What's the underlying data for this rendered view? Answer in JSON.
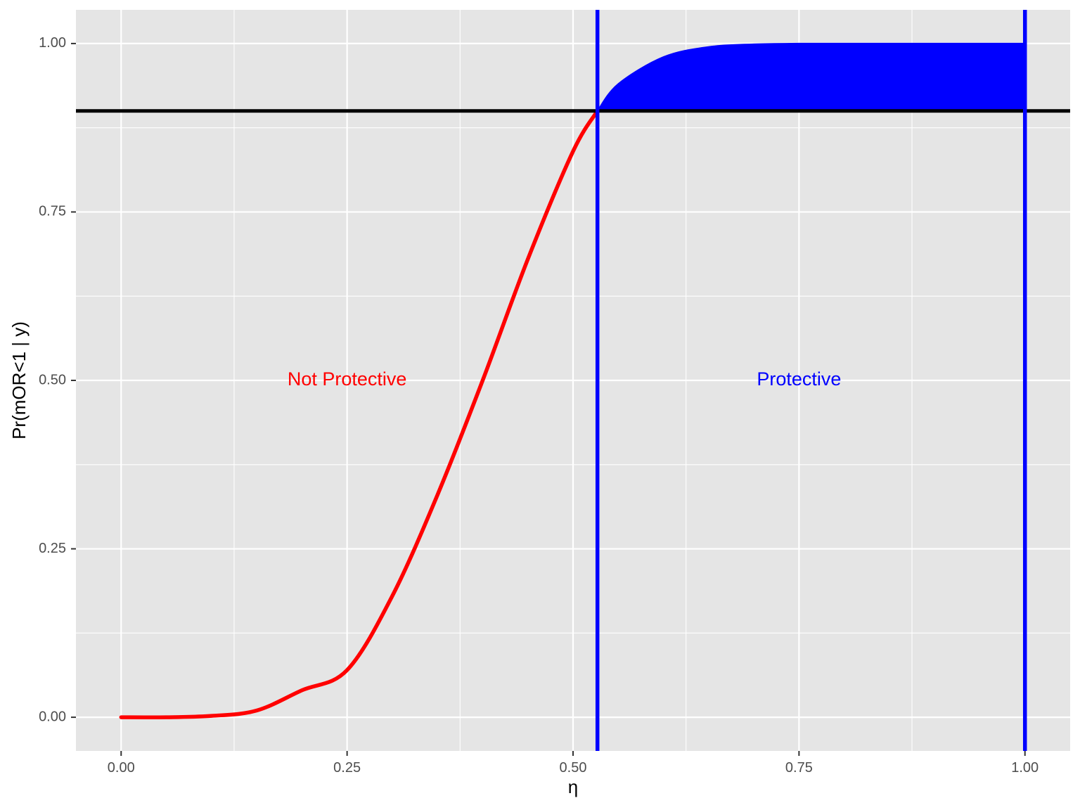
{
  "chart_data": {
    "type": "line",
    "title": "",
    "xlabel": "η",
    "ylabel": "Pr(mOR<1 | y)",
    "xlim": [
      -0.05,
      1.05
    ],
    "ylim": [
      -0.05,
      1.05
    ],
    "x_ticks": [
      0.0,
      0.25,
      0.5,
      0.75,
      1.0
    ],
    "x_tick_labels": [
      "0.00",
      "0.25",
      "0.50",
      "0.75",
      "1.00"
    ],
    "y_ticks": [
      0.0,
      0.25,
      0.5,
      0.75,
      1.0
    ],
    "y_tick_labels": [
      "0.00",
      "0.25",
      "0.50",
      "0.75",
      "1.00"
    ],
    "grid": true,
    "threshold": 0.9,
    "boundary_x": 0.527,
    "end_x": 1.0,
    "series": [
      {
        "color": "#ff0000",
        "x": [
          0.0,
          0.05,
          0.1,
          0.15,
          0.2,
          0.25,
          0.3,
          0.35,
          0.4,
          0.45,
          0.5,
          0.527
        ],
        "y": [
          0.0,
          0.0,
          0.002,
          0.01,
          0.04,
          0.07,
          0.18,
          0.33,
          0.5,
          0.68,
          0.84,
          0.9
        ]
      },
      {
        "color": "#0000ff",
        "fill_to": 0.9,
        "x": [
          0.527,
          0.55,
          0.6,
          0.65,
          0.7,
          0.75,
          0.8,
          0.9,
          1.0
        ],
        "y": [
          0.9,
          0.94,
          0.98,
          0.995,
          0.999,
          1.0,
          1.0,
          1.0,
          1.0
        ]
      }
    ],
    "annotations": [
      {
        "text": "Not Protective",
        "x": 0.25,
        "y": 0.5,
        "color": "#ff0000"
      },
      {
        "text": "Protective",
        "x": 0.75,
        "y": 0.5,
        "color": "#0000ff"
      }
    ],
    "colors": {
      "panel": "#e5e5e5",
      "grid": "#ffffff",
      "threshold": "#000000",
      "axis_text": "#4d4d4d"
    }
  }
}
